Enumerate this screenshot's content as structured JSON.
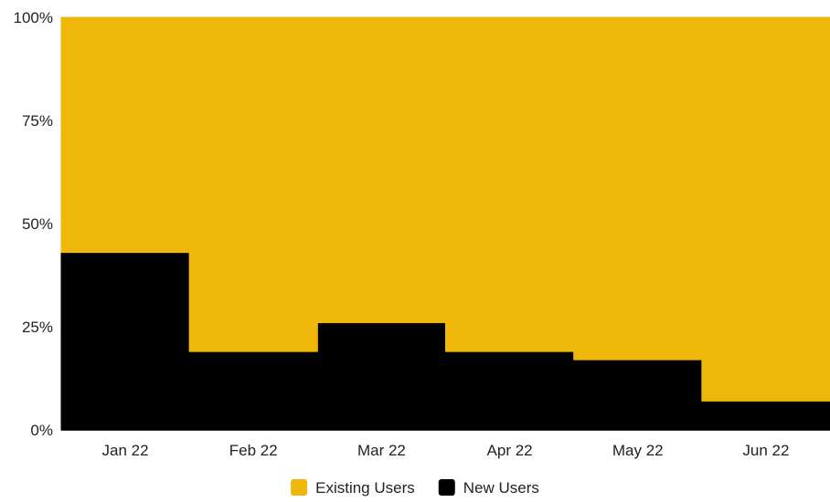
{
  "chart_data": {
    "type": "area",
    "stacked": true,
    "normalized_percent": true,
    "step": true,
    "categories": [
      "Jan 22",
      "Feb 22",
      "Mar 22",
      "Apr 22",
      "May 22",
      "Jun 22"
    ],
    "series": [
      {
        "name": "New Users",
        "values": [
          43,
          19,
          26,
          19,
          17,
          7
        ],
        "color": "#000000"
      },
      {
        "name": "Existing Users",
        "values": [
          57,
          81,
          74,
          81,
          83,
          93
        ],
        "color": "#F0B70B"
      }
    ],
    "ylim": [
      0,
      100
    ],
    "yticks": [
      {
        "value": 0,
        "label": "0%"
      },
      {
        "value": 25,
        "label": "25%"
      },
      {
        "value": 50,
        "label": "50%"
      },
      {
        "value": 75,
        "label": "75%"
      },
      {
        "value": 100,
        "label": "100%"
      }
    ],
    "legend": {
      "placement": "bottom-center",
      "items": [
        {
          "name": "Existing Users",
          "color": "#F0B70B"
        },
        {
          "name": "New Users",
          "color": "#000000"
        }
      ]
    },
    "grid": false
  }
}
